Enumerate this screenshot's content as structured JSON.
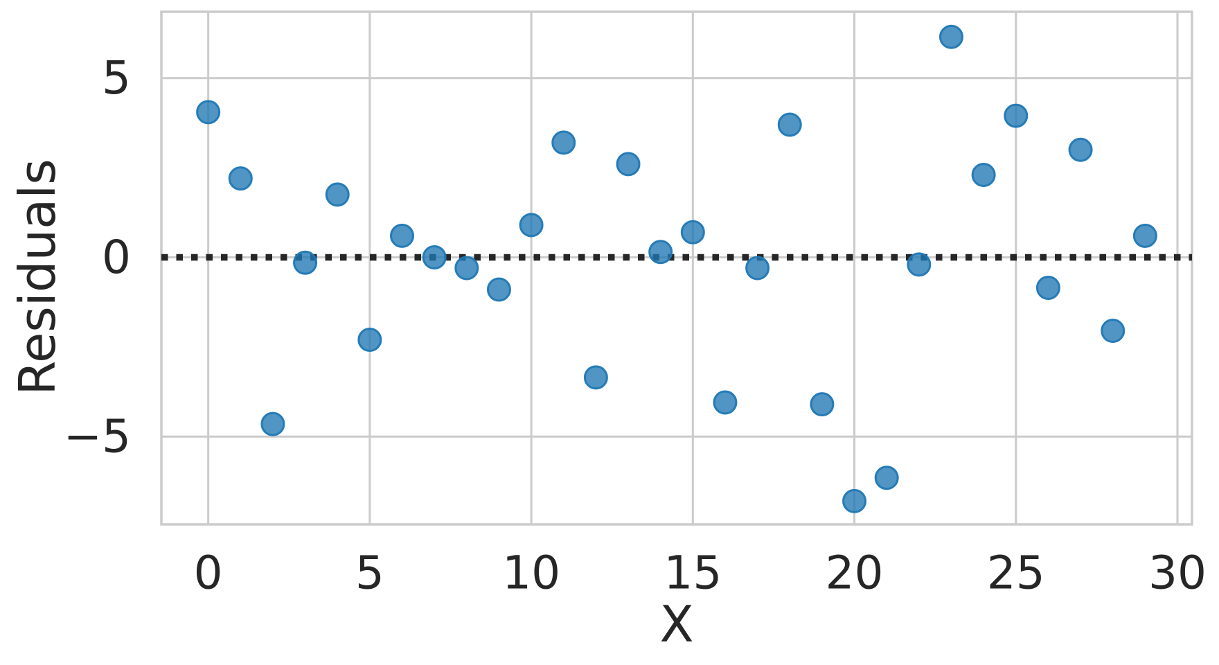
{
  "figure": {
    "background": "#ffffff",
    "text_color": "#262626",
    "grid_color": "#cbcbcb"
  },
  "chart_data": {
    "type": "scatter",
    "title": "",
    "xlabel": "X",
    "ylabel": "Residuals",
    "x": [
      0,
      1,
      2,
      3,
      4,
      5,
      6,
      7,
      8,
      9,
      10,
      11,
      12,
      13,
      14,
      15,
      16,
      17,
      18,
      19,
      20,
      21,
      22,
      23,
      24,
      25,
      26,
      27,
      28,
      29
    ],
    "y": [
      4.05,
      2.2,
      -4.65,
      -0.15,
      1.75,
      -2.3,
      0.6,
      0.0,
      -0.3,
      -0.9,
      0.9,
      3.2,
      -3.35,
      2.6,
      0.15,
      0.7,
      -4.05,
      -0.3,
      3.7,
      -4.1,
      -6.8,
      -6.15,
      -0.2,
      6.15,
      2.3,
      3.95,
      -0.85,
      3.0,
      -2.05,
      0.6
    ],
    "xlim": [
      -1.45,
      30.45
    ],
    "ylim": [
      -7.45,
      6.85
    ],
    "x_tick_values": [
      0,
      5,
      10,
      15,
      20,
      25,
      30
    ],
    "x_tick_labels": [
      "0",
      "5",
      "10",
      "15",
      "20",
      "25",
      "30"
    ],
    "y_tick_values": [
      5,
      0,
      -5
    ],
    "y_tick_labels": [
      "5",
      "0",
      "−5"
    ],
    "grid": true,
    "legend": "none",
    "zero_line": {
      "y": 0,
      "style": "dotted",
      "color": "#262626"
    },
    "marker": {
      "fill": "#1f77b4",
      "fill_opacity": 0.78,
      "edge_color": "#1f77b4",
      "edge_opacity": 0.95,
      "radius_px": 16
    }
  }
}
